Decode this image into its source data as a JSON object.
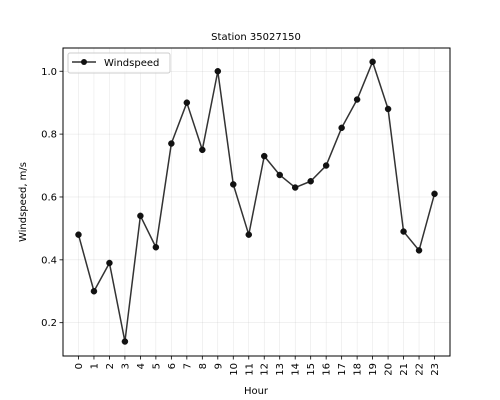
{
  "chart_data": {
    "type": "line",
    "title": "Station 35027150",
    "xlabel": "Hour",
    "ylabel": "Windspeed, m/s",
    "x": [
      0,
      1,
      2,
      3,
      4,
      5,
      6,
      7,
      8,
      9,
      10,
      11,
      12,
      13,
      14,
      15,
      16,
      17,
      18,
      19,
      20,
      21,
      22,
      23
    ],
    "x_tick_labels": [
      "0",
      "1",
      "2",
      "3",
      "4",
      "5",
      "6",
      "7",
      "8",
      "9",
      "10",
      "11",
      "12",
      "13",
      "14",
      "15",
      "16",
      "17",
      "18",
      "19",
      "20",
      "21",
      "22",
      "23"
    ],
    "y_ticks": [
      0.2,
      0.4,
      0.6,
      0.8,
      1.0
    ],
    "y_tick_labels": [
      "0.2",
      "0.4",
      "0.6",
      "0.8",
      "1.0"
    ],
    "xlim": [
      -1,
      24
    ],
    "ylim": [
      0.094,
      1.074
    ],
    "grid": true,
    "legend_position": "upper left",
    "series": [
      {
        "name": "Windspeed",
        "color": "#333333",
        "marker": "circle",
        "values": [
          0.48,
          0.3,
          0.39,
          0.14,
          0.54,
          0.44,
          0.77,
          0.9,
          0.75,
          1.0,
          0.64,
          0.48,
          0.73,
          0.67,
          0.63,
          0.65,
          0.7,
          0.82,
          0.91,
          1.03,
          0.88,
          0.49,
          0.43,
          0.61
        ]
      }
    ]
  }
}
